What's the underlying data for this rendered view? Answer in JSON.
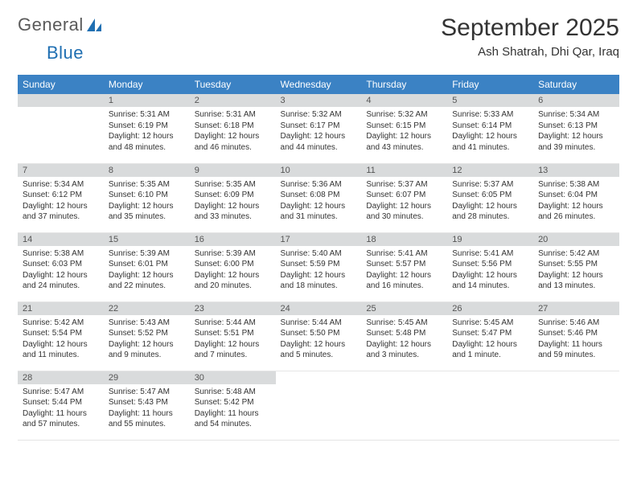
{
  "logo": {
    "text1": "General",
    "text2": "Blue"
  },
  "title": "September 2025",
  "location": "Ash Shatrah, Dhi Qar, Iraq",
  "weekdays": [
    "Sunday",
    "Monday",
    "Tuesday",
    "Wednesday",
    "Thursday",
    "Friday",
    "Saturday"
  ],
  "colors": {
    "header_bg": "#3b82c4",
    "header_text": "#ffffff",
    "daynum_bg": "#d9dbdc",
    "text": "#333333"
  },
  "leading_blanks": 1,
  "days": [
    {
      "n": 1,
      "sunrise": "5:31 AM",
      "sunset": "6:19 PM",
      "daylight": "12 hours and 48 minutes."
    },
    {
      "n": 2,
      "sunrise": "5:31 AM",
      "sunset": "6:18 PM",
      "daylight": "12 hours and 46 minutes."
    },
    {
      "n": 3,
      "sunrise": "5:32 AM",
      "sunset": "6:17 PM",
      "daylight": "12 hours and 44 minutes."
    },
    {
      "n": 4,
      "sunrise": "5:32 AM",
      "sunset": "6:15 PM",
      "daylight": "12 hours and 43 minutes."
    },
    {
      "n": 5,
      "sunrise": "5:33 AM",
      "sunset": "6:14 PM",
      "daylight": "12 hours and 41 minutes."
    },
    {
      "n": 6,
      "sunrise": "5:34 AM",
      "sunset": "6:13 PM",
      "daylight": "12 hours and 39 minutes."
    },
    {
      "n": 7,
      "sunrise": "5:34 AM",
      "sunset": "6:12 PM",
      "daylight": "12 hours and 37 minutes."
    },
    {
      "n": 8,
      "sunrise": "5:35 AM",
      "sunset": "6:10 PM",
      "daylight": "12 hours and 35 minutes."
    },
    {
      "n": 9,
      "sunrise": "5:35 AM",
      "sunset": "6:09 PM",
      "daylight": "12 hours and 33 minutes."
    },
    {
      "n": 10,
      "sunrise": "5:36 AM",
      "sunset": "6:08 PM",
      "daylight": "12 hours and 31 minutes."
    },
    {
      "n": 11,
      "sunrise": "5:37 AM",
      "sunset": "6:07 PM",
      "daylight": "12 hours and 30 minutes."
    },
    {
      "n": 12,
      "sunrise": "5:37 AM",
      "sunset": "6:05 PM",
      "daylight": "12 hours and 28 minutes."
    },
    {
      "n": 13,
      "sunrise": "5:38 AM",
      "sunset": "6:04 PM",
      "daylight": "12 hours and 26 minutes."
    },
    {
      "n": 14,
      "sunrise": "5:38 AM",
      "sunset": "6:03 PM",
      "daylight": "12 hours and 24 minutes."
    },
    {
      "n": 15,
      "sunrise": "5:39 AM",
      "sunset": "6:01 PM",
      "daylight": "12 hours and 22 minutes."
    },
    {
      "n": 16,
      "sunrise": "5:39 AM",
      "sunset": "6:00 PM",
      "daylight": "12 hours and 20 minutes."
    },
    {
      "n": 17,
      "sunrise": "5:40 AM",
      "sunset": "5:59 PM",
      "daylight": "12 hours and 18 minutes."
    },
    {
      "n": 18,
      "sunrise": "5:41 AM",
      "sunset": "5:57 PM",
      "daylight": "12 hours and 16 minutes."
    },
    {
      "n": 19,
      "sunrise": "5:41 AM",
      "sunset": "5:56 PM",
      "daylight": "12 hours and 14 minutes."
    },
    {
      "n": 20,
      "sunrise": "5:42 AM",
      "sunset": "5:55 PM",
      "daylight": "12 hours and 13 minutes."
    },
    {
      "n": 21,
      "sunrise": "5:42 AM",
      "sunset": "5:54 PM",
      "daylight": "12 hours and 11 minutes."
    },
    {
      "n": 22,
      "sunrise": "5:43 AM",
      "sunset": "5:52 PM",
      "daylight": "12 hours and 9 minutes."
    },
    {
      "n": 23,
      "sunrise": "5:44 AM",
      "sunset": "5:51 PM",
      "daylight": "12 hours and 7 minutes."
    },
    {
      "n": 24,
      "sunrise": "5:44 AM",
      "sunset": "5:50 PM",
      "daylight": "12 hours and 5 minutes."
    },
    {
      "n": 25,
      "sunrise": "5:45 AM",
      "sunset": "5:48 PM",
      "daylight": "12 hours and 3 minutes."
    },
    {
      "n": 26,
      "sunrise": "5:45 AM",
      "sunset": "5:47 PM",
      "daylight": "12 hours and 1 minute."
    },
    {
      "n": 27,
      "sunrise": "5:46 AM",
      "sunset": "5:46 PM",
      "daylight": "11 hours and 59 minutes."
    },
    {
      "n": 28,
      "sunrise": "5:47 AM",
      "sunset": "5:44 PM",
      "daylight": "11 hours and 57 minutes."
    },
    {
      "n": 29,
      "sunrise": "5:47 AM",
      "sunset": "5:43 PM",
      "daylight": "11 hours and 55 minutes."
    },
    {
      "n": 30,
      "sunrise": "5:48 AM",
      "sunset": "5:42 PM",
      "daylight": "11 hours and 54 minutes."
    }
  ]
}
